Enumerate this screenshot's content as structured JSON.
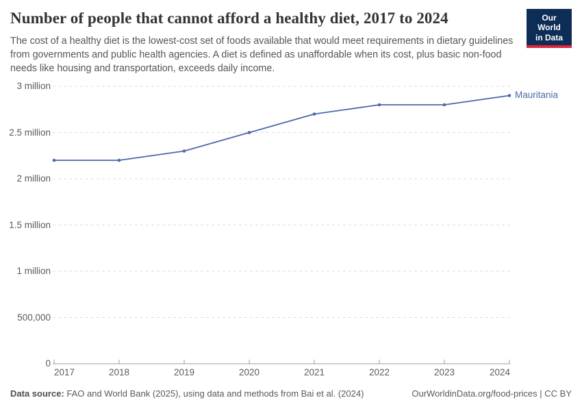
{
  "header": {
    "title": "Number of people that cannot afford a healthy diet, 2017 to 2024",
    "subtitle": "The cost of a healthy diet is the lowest-cost set of foods available that would meet requirements in dietary guidelines from governments and public health agencies. A diet is defined as unaffordable when its cost, plus basic non-food needs like housing and transportation, exceeds daily income.",
    "logo": {
      "line1": "Our World",
      "line2": "in Data",
      "background_color": "#0d2d57",
      "stripe_color": "#e0243a"
    }
  },
  "chart_data": {
    "type": "line",
    "title": "Number of people that cannot afford a healthy diet, 2017 to 2024",
    "x": [
      2017,
      2018,
      2019,
      2020,
      2021,
      2022,
      2023,
      2024
    ],
    "xtick_labels": [
      "2017",
      "2018",
      "2019",
      "2020",
      "2021",
      "2022",
      "2023",
      "2024"
    ],
    "series": [
      {
        "name": "Mauritania",
        "color": "#4a68a8",
        "values": [
          2200000,
          2200000,
          2300000,
          2500000,
          2700000,
          2800000,
          2800000,
          2900000
        ]
      }
    ],
    "ylim": [
      0,
      3000000
    ],
    "yticks": [
      0,
      500000,
      1000000,
      1500000,
      2000000,
      2500000,
      3000000
    ],
    "ytick_labels": [
      "0",
      "500,000",
      "1 million",
      "1.5 million",
      "2 million",
      "2.5 million",
      "3 million"
    ],
    "xlabel": "",
    "ylabel": "",
    "grid": "horizontal-dashed",
    "gridline_color": "#dcdcdc",
    "axis_color": "#9c9c9c",
    "legend_position": "end-of-line-label"
  },
  "footer": {
    "source_label": "Data source:",
    "source_text": " FAO and World Bank (2025), using data and methods from Bai et al. (2024)",
    "license": "OurWorldinData.org/food-prices | CC BY"
  }
}
